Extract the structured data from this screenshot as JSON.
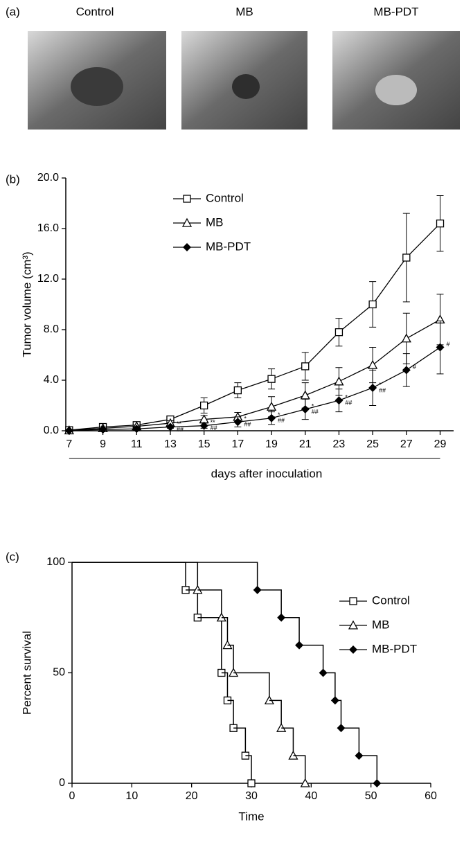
{
  "photo_panel": {
    "label": "(a)",
    "captions": [
      "Control",
      "MB",
      "MB-PDT"
    ]
  },
  "chart_data": [
    {
      "type": "line",
      "panel_label": "(b)",
      "ylabel": "Tumor volume (cm³)",
      "xlabel": "days after inoculation",
      "x": [
        7,
        9,
        11,
        13,
        15,
        17,
        19,
        21,
        23,
        25,
        27,
        29
      ],
      "xlim": [
        6.8,
        29.8
      ],
      "xticks": [
        7,
        9,
        11,
        13,
        15,
        17,
        19,
        21,
        23,
        25,
        27,
        29
      ],
      "ylim": [
        0,
        20
      ],
      "yticks": [
        {
          "value": 0,
          "label": "0.0"
        },
        {
          "value": 4,
          "label": "4.0"
        },
        {
          "value": 8,
          "label": "8.0"
        },
        {
          "value": 12,
          "label": "12.0"
        },
        {
          "value": 16,
          "label": "16.0"
        },
        {
          "value": 20,
          "label": "20.0"
        }
      ],
      "series": [
        {
          "name": "Control",
          "color": "#000000",
          "marker": "square",
          "values": [
            0.05,
            0.3,
            0.45,
            0.9,
            2.0,
            3.2,
            4.1,
            5.1,
            7.8,
            10.0,
            13.7,
            16.4
          ],
          "errors": [
            0.1,
            0.15,
            0.15,
            0.2,
            0.6,
            0.6,
            0.8,
            1.1,
            1.1,
            1.8,
            3.5,
            2.2
          ]
        },
        {
          "name": "MB",
          "color": "#000000",
          "marker": "triangle",
          "values": [
            0.03,
            0.2,
            0.35,
            0.6,
            0.9,
            1.1,
            1.9,
            2.8,
            3.9,
            5.2,
            7.3,
            8.8
          ],
          "errors": [
            0.05,
            0.1,
            0.1,
            0.2,
            0.3,
            0.35,
            0.8,
            1.0,
            1.1,
            1.4,
            2.0,
            2.0
          ]
        },
        {
          "name": "MB-PDT",
          "color": "#000000",
          "marker": "diamond",
          "values": [
            0.02,
            0.1,
            0.15,
            0.3,
            0.4,
            0.7,
            1.0,
            1.7,
            2.4,
            3.4,
            4.8,
            6.6
          ],
          "errors": [
            0.03,
            0.05,
            0.1,
            0.1,
            0.2,
            0.4,
            0.5,
            0.8,
            0.9,
            1.4,
            1.3,
            2.1
          ],
          "annotations": [
            null,
            null,
            null,
            [
              "**",
              "##"
            ],
            [
              "**",
              "##"
            ],
            [
              "*",
              "##"
            ],
            [
              "*",
              "##"
            ],
            [
              "*",
              "##"
            ],
            [
              "*",
              "##"
            ],
            [
              "*",
              "##"
            ],
            [
              "#"
            ],
            [
              "#"
            ]
          ]
        }
      ]
    },
    {
      "type": "step",
      "panel_label": "(c)",
      "ylabel": "Percent survival",
      "xlabel": "Time",
      "xlim": [
        0,
        60
      ],
      "xticks": [
        0,
        10,
        20,
        30,
        40,
        50,
        60
      ],
      "ylim": [
        0,
        100
      ],
      "yticks": [
        0,
        50,
        100
      ],
      "series": [
        {
          "name": "Control",
          "color": "#000000",
          "marker": "square",
          "x": [
            0,
            19,
            21,
            25,
            26,
            27,
            29,
            30
          ],
          "values": [
            100,
            87.5,
            75,
            50,
            37.5,
            25,
            12.5,
            0
          ]
        },
        {
          "name": "MB",
          "color": "#000000",
          "marker": "triangle",
          "x": [
            0,
            21,
            25,
            26,
            27,
            33,
            35,
            37,
            39
          ],
          "values": [
            100,
            87.5,
            75,
            62.5,
            50,
            37.5,
            25,
            12.5,
            0
          ]
        },
        {
          "name": "MB-PDT",
          "color": "#000000",
          "marker": "diamond",
          "x": [
            0,
            31,
            35,
            38,
            42,
            44,
            45,
            48,
            51
          ],
          "values": [
            100,
            87.5,
            75,
            62.5,
            50,
            37.5,
            25,
            12.5,
            0
          ]
        }
      ]
    }
  ]
}
